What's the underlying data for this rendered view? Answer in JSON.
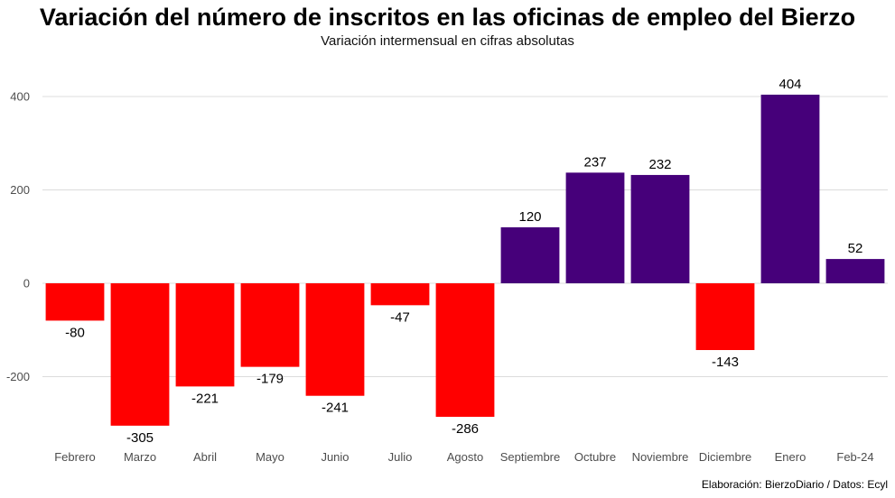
{
  "title": "Variación del número de inscritos en las oficinas de empleo del Bierzo",
  "subtitle": "Variación intermensual en cifras absolutas",
  "caption": "Elaboración: BierzoDiario / Datos: Ecyl",
  "colors": {
    "negative": "#ff0000",
    "positive": "#46007a",
    "grid": "#dcdcdc"
  },
  "chart_data": {
    "type": "bar",
    "categories": [
      "Febrero",
      "Marzo",
      "Abril",
      "Mayo",
      "Junio",
      "Julio",
      "Agosto",
      "Septiembre",
      "Octubre",
      "Noviembre",
      "Diciembre",
      "Enero",
      "Feb-24"
    ],
    "values": [
      -80,
      -305,
      -221,
      -179,
      -241,
      -47,
      -286,
      120,
      237,
      232,
      -143,
      404,
      52
    ],
    "value_labels": [
      "-80",
      "-305",
      "-221",
      "-179",
      "-241",
      "-47",
      "-286",
      "120",
      "237",
      "232",
      "-143",
      "404",
      "52"
    ],
    "yticks": [
      -200,
      0,
      200,
      400
    ],
    "ytick_labels": [
      "-200",
      "0",
      "200",
      "400"
    ],
    "ylim": [
      -330,
      440
    ],
    "grid": true,
    "legend": "none",
    "xlabel": "",
    "ylabel": ""
  }
}
